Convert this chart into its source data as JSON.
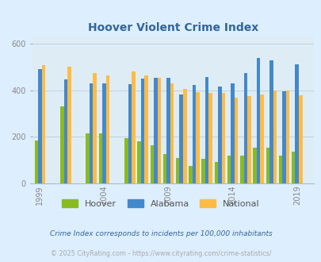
{
  "title": "Hoover Violent Crime Index",
  "title_color": "#336699",
  "bg_color": "#ddeeff",
  "plot_bg_color": "#deedf5",
  "hoover_color": "#88bb22",
  "alabama_color": "#4488cc",
  "national_color": "#ffbb44",
  "tick_color": "#888888",
  "ytick_labels": [
    0,
    200,
    400,
    600
  ],
  "ylim": [
    0,
    630
  ],
  "xtick_positions": [
    1999,
    2004,
    2009,
    2014,
    2019
  ],
  "footnote1": "Crime Index corresponds to incidents per 100,000 inhabitants",
  "footnote2": "© 2025 CityRating.com - https://www.cityrating.com/crime-statistics/",
  "footnote1_color": "#336699",
  "footnote2_color": "#aaaaaa",
  "bar_width": 0.28,
  "valid_years": [
    1999,
    2001,
    2003,
    2004,
    2006,
    2007,
    2008,
    2009,
    2010,
    2011,
    2012,
    2013,
    2014,
    2015,
    2016,
    2017,
    2018,
    2019
  ],
  "hoover_vals": [
    183,
    330,
    215,
    215,
    193,
    180,
    162,
    127,
    108,
    75,
    107,
    93,
    120,
    120,
    153,
    155,
    120,
    137
  ],
  "alabama_vals": [
    492,
    447,
    430,
    430,
    425,
    450,
    455,
    455,
    382,
    422,
    457,
    415,
    428,
    475,
    537,
    527,
    397,
    511
  ],
  "national_vals": [
    507,
    500,
    475,
    465,
    480,
    465,
    455,
    430,
    405,
    392,
    390,
    387,
    367,
    375,
    383,
    398,
    400,
    380
  ]
}
